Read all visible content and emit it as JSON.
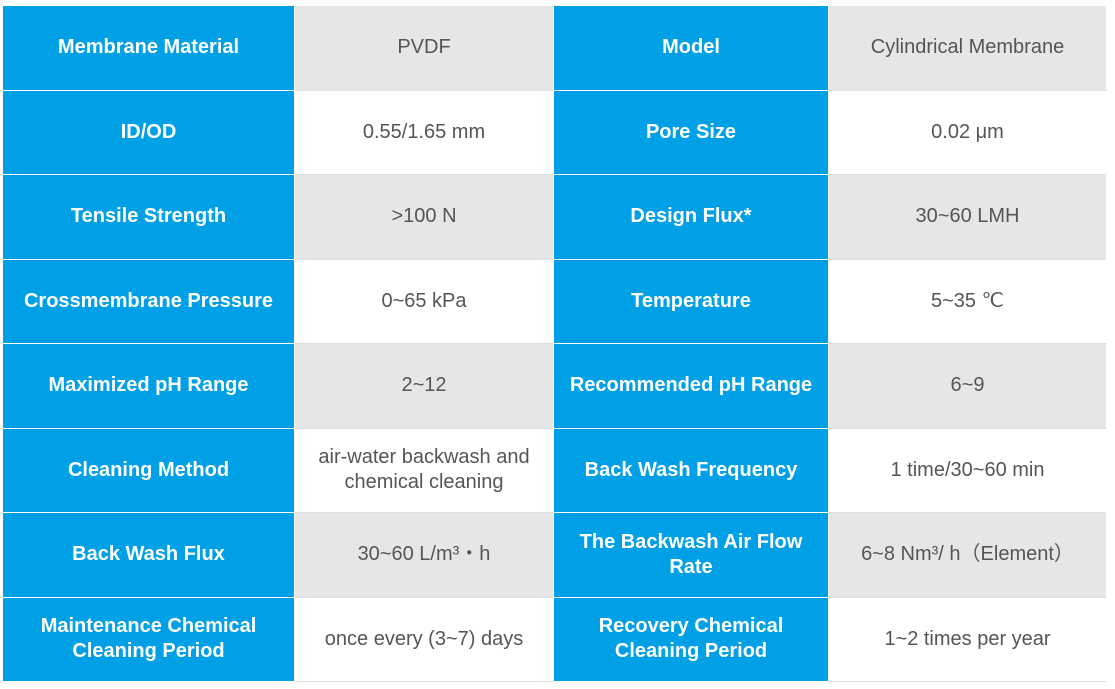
{
  "rows": [
    {
      "k1": "Membrane Material",
      "v1": "PVDF",
      "k2": "Model",
      "v2": "Cylindrical Membrane"
    },
    {
      "k1": "ID/OD",
      "v1": "0.55/1.65 mm",
      "k2": "Pore Size",
      "v2": "0.02 μm"
    },
    {
      "k1": "Tensile Strength",
      "v1": ">100 N",
      "k2": "Design Flux*",
      "v2": "30~60 LMH"
    },
    {
      "k1": "Crossmembrane Pressure",
      "v1": "0~65 kPa",
      "k2": "Temperature",
      "v2": "5~35 ℃"
    },
    {
      "k1": "Maximized pH Range",
      "v1": "2~12",
      "k2": "Recommended pH Range",
      "v2": "6~9"
    },
    {
      "k1": "Cleaning Method",
      "v1": "air-water backwash and chemical cleaning",
      "k2": "Back Wash Frequency",
      "v2": "1 time/30~60 min"
    },
    {
      "k1": "Back Wash Flux",
      "v1": "30~60 L/m³・h",
      "k2": "The Backwash Air Flow Rate",
      "v2": "6~8 Nm³/ h（Element）"
    },
    {
      "k1": "Maintenance Chemical Cleaning Period",
      "v1": "once every (3~7) days",
      "k2": "Recovery Chemical Cleaning Period",
      "v2": "1~2 times per year"
    }
  ],
  "colors": {
    "header": "#00a0e6",
    "alt_row": "#e6e6e6",
    "text": "#555555"
  }
}
